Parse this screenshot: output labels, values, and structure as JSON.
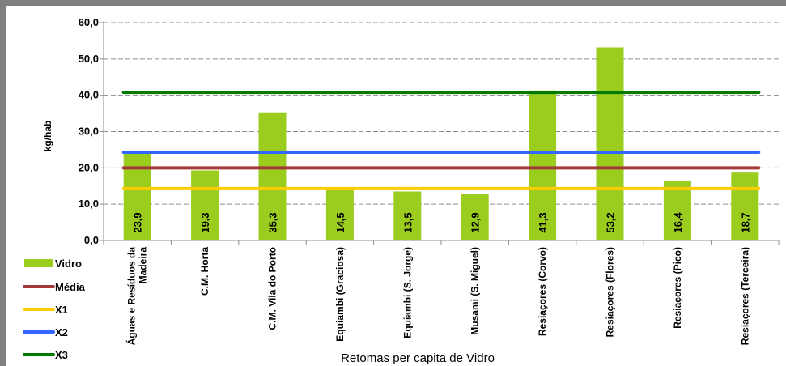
{
  "chart_data": {
    "type": "bar",
    "categories": [
      "Águas e Resíduos da Madeira",
      "C.M. Horta",
      "C.M. Vila do Porto",
      "Equiambi (Graciosa)",
      "Equiambi (S. Jorge)",
      "Musami (S. Miguel)",
      "Resiaçores (Corvo)",
      "Resiaçores (Flores)",
      "Resiaçores (Pico)",
      "Resiaçores (Terceira)"
    ],
    "category_lines": [
      [
        "Águas e Resíduos da",
        "Madeira"
      ],
      [
        "C.M. Horta"
      ],
      [
        "C.M. Vila do Porto"
      ],
      [
        "Equiambi (Graciosa)"
      ],
      [
        "Equiambi (S. Jorge)"
      ],
      [
        "Musami (S. Miguel)"
      ],
      [
        "Resiaçores (Corvo)"
      ],
      [
        "Resiaçores (Flores)"
      ],
      [
        "Resiaçores (Pico)"
      ],
      [
        "Resiaçores (Terceira)"
      ]
    ],
    "series": [
      {
        "name": "Vidro",
        "kind": "bar",
        "color": "#9acd1e",
        "values": [
          23.9,
          19.3,
          35.3,
          14.5,
          13.5,
          12.9,
          41.3,
          53.2,
          16.4,
          18.7
        ],
        "data_labels": [
          "23,9",
          "19,3",
          "35,3",
          "14,5",
          "13,5",
          "12,9",
          "41,3",
          "53,2",
          "16,4",
          "18,7"
        ]
      },
      {
        "name": "Média",
        "kind": "line",
        "color": "#a33a3a",
        "value": 20.0
      },
      {
        "name": "X1",
        "kind": "line",
        "color": "#ffcc00",
        "value": 14.3
      },
      {
        "name": "X2",
        "kind": "line",
        "color": "#3366ff",
        "value": 24.3
      },
      {
        "name": "X3",
        "kind": "line",
        "color": "#007a00",
        "value": 40.8
      }
    ],
    "ylabel": "kg/hab",
    "xlabel": "Retomas per capita de Vidro",
    "ylim": [
      0,
      60
    ],
    "yticks": [
      0,
      10,
      20,
      30,
      40,
      50,
      60
    ],
    "ytick_labels": [
      "0,0",
      "10,0",
      "20,0",
      "30,0",
      "40,0",
      "50,0",
      "60,0"
    ],
    "grid": true,
    "legend_position": "bottom-left"
  }
}
